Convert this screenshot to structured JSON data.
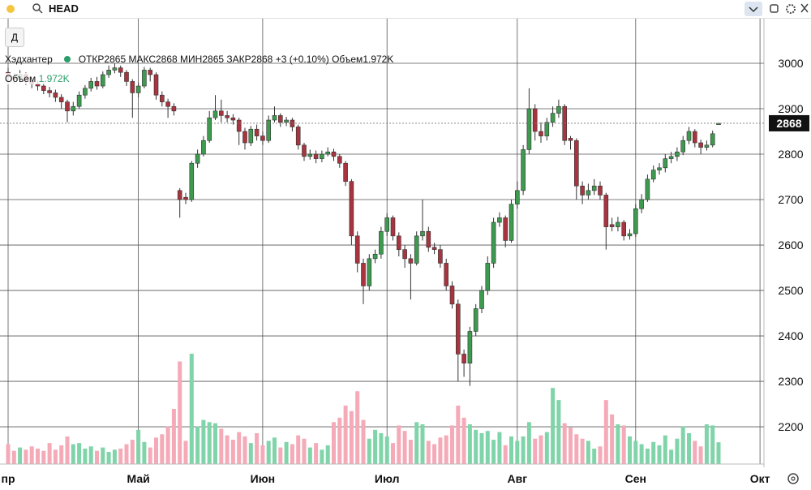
{
  "toolbar": {
    "search": "HEAD",
    "period_button": "Д"
  },
  "legend": {
    "open_label": "ОТКР",
    "high_label": "МАКС",
    "low_label": "МИН",
    "close_label": "ЗАКР",
    "change": "+3 (+0.10%)",
    "volume_label": "Объем",
    "volume_value": "1.972K"
  },
  "chart_data": {
    "type": "candlestick",
    "grid": true,
    "xlim": [
      -1.37,
      127.67
    ],
    "xticks": [
      {
        "value": 0,
        "label": "пр"
      },
      {
        "value": 22,
        "label": "Май"
      },
      {
        "value": 43,
        "label": "Июн"
      },
      {
        "value": 64,
        "label": "Июл"
      },
      {
        "value": 86,
        "label": "Авг"
      },
      {
        "value": 106,
        "label": "Сен"
      },
      {
        "value": 127,
        "label": "Окт"
      }
    ],
    "ylim": [
      2118,
      3100
    ],
    "yticks": [
      2200,
      2300,
      2400,
      2500,
      2600,
      2700,
      2800,
      2900,
      3000
    ],
    "x": [
      0,
      1,
      2,
      3,
      4,
      5,
      6,
      7,
      8,
      9,
      10,
      11,
      12,
      13,
      14,
      15,
      16,
      17,
      18,
      19,
      20,
      21,
      22,
      23,
      24,
      25,
      26,
      27,
      28,
      29,
      30,
      31,
      32,
      33,
      34,
      35,
      36,
      37,
      38,
      39,
      40,
      41,
      42,
      43,
      44,
      45,
      46,
      47,
      48,
      49,
      50,
      51,
      52,
      53,
      54,
      55,
      56,
      57,
      58,
      59,
      60,
      61,
      62,
      63,
      64,
      65,
      66,
      67,
      68,
      69,
      70,
      71,
      72,
      73,
      74,
      75,
      76,
      77,
      78,
      79,
      80,
      81,
      82,
      83,
      84,
      85,
      86,
      87,
      88,
      89,
      90,
      91,
      92,
      93,
      94,
      95,
      96,
      97,
      98,
      99,
      100,
      101,
      102,
      103,
      104,
      105,
      106,
      107,
      108,
      109,
      110,
      111,
      112,
      113,
      114,
      115,
      116,
      117,
      118,
      119,
      120
    ],
    "series": [
      {
        "name": "Хэдхантер",
        "up_color": "#3d9a4f",
        "down_color": "#a8343f",
        "open": [
          2980,
          2970,
          2965,
          2975,
          2960,
          2955,
          2950,
          2940,
          2935,
          2925,
          2915,
          2895,
          2905,
          2930,
          2945,
          2960,
          2950,
          2975,
          2985,
          2990,
          2980,
          2960,
          2935,
          2950,
          2985,
          2975,
          2930,
          2915,
          2905,
          2720,
          2705,
          2700,
          2780,
          2800,
          2830,
          2880,
          2895,
          2885,
          2880,
          2875,
          2850,
          2825,
          2855,
          2840,
          2830,
          2875,
          2885,
          2870,
          2875,
          2860,
          2820,
          2795,
          2800,
          2790,
          2800,
          2805,
          2795,
          2780,
          2740,
          2620,
          2560,
          2510,
          2570,
          2580,
          2630,
          2660,
          2620,
          2590,
          2570,
          2560,
          2620,
          2630,
          2595,
          2590,
          2560,
          2510,
          2470,
          2360,
          2340,
          2410,
          2460,
          2500,
          2560,
          2650,
          2660,
          2610,
          2690,
          2720,
          2810,
          2900,
          2850,
          2840,
          2870,
          2890,
          2905,
          2835,
          2830,
          2730,
          2710,
          2720,
          2730,
          2710,
          2645,
          2640,
          2650,
          2620,
          2625,
          2680,
          2700,
          2745,
          2765,
          2770,
          2790,
          2795,
          2805,
          2830,
          2850,
          2825,
          2815,
          2820,
          2865
        ],
        "high": [
          2990,
          2978,
          2985,
          2980,
          2968,
          2962,
          2958,
          2948,
          2942,
          2932,
          2920,
          2915,
          2938,
          2952,
          2968,
          2970,
          2982,
          2995,
          3000,
          2995,
          2985,
          2965,
          2958,
          2992,
          2990,
          2980,
          2938,
          2922,
          2912,
          2725,
          2715,
          2785,
          2810,
          2840,
          2895,
          2930,
          2920,
          2895,
          2888,
          2880,
          2858,
          2862,
          2865,
          2850,
          2885,
          2905,
          2890,
          2882,
          2880,
          2865,
          2825,
          2810,
          2808,
          2808,
          2815,
          2812,
          2800,
          2785,
          2745,
          2630,
          2570,
          2580,
          2590,
          2640,
          2670,
          2665,
          2628,
          2600,
          2580,
          2630,
          2700,
          2640,
          2605,
          2600,
          2570,
          2520,
          2480,
          2370,
          2420,
          2470,
          2510,
          2575,
          2660,
          2672,
          2665,
          2700,
          2740,
          2820,
          2945,
          2910,
          2870,
          2880,
          2905,
          2920,
          2910,
          2840,
          2835,
          2740,
          2735,
          2745,
          2740,
          2715,
          2660,
          2662,
          2655,
          2635,
          2690,
          2712,
          2755,
          2775,
          2780,
          2800,
          2805,
          2815,
          2840,
          2860,
          2855,
          2832,
          2830,
          2852,
          2868
        ],
        "low": [
          2960,
          2955,
          2958,
          2952,
          2945,
          2940,
          2932,
          2925,
          2915,
          2900,
          2870,
          2885,
          2900,
          2922,
          2938,
          2942,
          2945,
          2968,
          2978,
          2970,
          2950,
          2880,
          2925,
          2945,
          2960,
          2920,
          2905,
          2880,
          2885,
          2660,
          2690,
          2695,
          2770,
          2795,
          2825,
          2875,
          2870,
          2870,
          2865,
          2820,
          2810,
          2818,
          2830,
          2820,
          2825,
          2870,
          2860,
          2862,
          2850,
          2810,
          2785,
          2788,
          2780,
          2782,
          2795,
          2785,
          2770,
          2730,
          2600,
          2540,
          2470,
          2500,
          2560,
          2570,
          2620,
          2610,
          2575,
          2550,
          2480,
          2555,
          2610,
          2585,
          2580,
          2550,
          2500,
          2460,
          2300,
          2310,
          2290,
          2400,
          2450,
          2490,
          2550,
          2640,
          2595,
          2605,
          2680,
          2710,
          2800,
          2830,
          2825,
          2830,
          2860,
          2880,
          2820,
          2810,
          2700,
          2690,
          2700,
          2710,
          2700,
          2590,
          2630,
          2630,
          2610,
          2612,
          2618,
          2670,
          2695,
          2738,
          2755,
          2760,
          2780,
          2785,
          2798,
          2822,
          2815,
          2800,
          2808,
          2815,
          2865
        ],
        "close": [
          2970,
          2965,
          2975,
          2960,
          2955,
          2950,
          2940,
          2935,
          2925,
          2915,
          2895,
          2905,
          2930,
          2945,
          2960,
          2950,
          2975,
          2985,
          2990,
          2980,
          2960,
          2935,
          2950,
          2985,
          2975,
          2930,
          2915,
          2905,
          2895,
          2700,
          2700,
          2780,
          2800,
          2830,
          2880,
          2895,
          2885,
          2880,
          2875,
          2850,
          2825,
          2855,
          2840,
          2830,
          2875,
          2885,
          2870,
          2875,
          2860,
          2820,
          2795,
          2800,
          2790,
          2800,
          2805,
          2795,
          2780,
          2740,
          2620,
          2560,
          2510,
          2570,
          2580,
          2630,
          2660,
          2620,
          2590,
          2570,
          2560,
          2620,
          2630,
          2595,
          2590,
          2560,
          2510,
          2470,
          2360,
          2340,
          2410,
          2460,
          2500,
          2560,
          2650,
          2660,
          2610,
          2690,
          2720,
          2810,
          2900,
          2850,
          2840,
          2870,
          2890,
          2905,
          2830,
          2830,
          2730,
          2710,
          2720,
          2730,
          2710,
          2640,
          2640,
          2650,
          2620,
          2625,
          2680,
          2700,
          2745,
          2765,
          2770,
          2790,
          2795,
          2805,
          2830,
          2850,
          2825,
          2815,
          2820,
          2845,
          2868
        ]
      },
      {
        "name": "Объем",
        "up_color": "#80d4aa",
        "down_color": "#f5aab8",
        "values": [
          1.8,
          1.2,
          1.5,
          1.3,
          1.6,
          1.4,
          1.2,
          1.9,
          1.3,
          1.7,
          2.5,
          1.8,
          1.9,
          1.4,
          1.6,
          1.2,
          1.5,
          1.1,
          1.3,
          1.4,
          1.8,
          2.2,
          3.1,
          2.0,
          1.5,
          2.4,
          2.7,
          3.4,
          5.0,
          9.3,
          2.1,
          10,
          3.4,
          4.0,
          3.8,
          3.7,
          3.2,
          2.6,
          2.2,
          2.9,
          2.5,
          1.9,
          2.8,
          1.7,
          2.1,
          2.4,
          1.5,
          2.0,
          1.8,
          2.6,
          2.3,
          1.5,
          1.9,
          1.3,
          1.7,
          3.8,
          4.2,
          5.3,
          4.8,
          6.6,
          4.0,
          2.3,
          3.1,
          2.8,
          2.5,
          1.9,
          3.5,
          3.0,
          2.2,
          3.8,
          3.6,
          2.1,
          1.8,
          2.4,
          2.6,
          3.5,
          5.3,
          4.2,
          3.6,
          3.1,
          2.8,
          3.0,
          2.2,
          2.9,
          1.7,
          2.5,
          2.1,
          2.5,
          3.8,
          2.3,
          2.6,
          2.9,
          6.9,
          5.8,
          3.7,
          3.3,
          2.7,
          2.3,
          2.1,
          1.4,
          1.6,
          5.8,
          4.5,
          3.6,
          3.5,
          2.5,
          2.1,
          1.8,
          1.4,
          2.0,
          1.7,
          2.6,
          1.3,
          2.3,
          3.4,
          2.8,
          2.1,
          1.6,
          3.6,
          3.5,
          1.972
        ]
      }
    ]
  }
}
